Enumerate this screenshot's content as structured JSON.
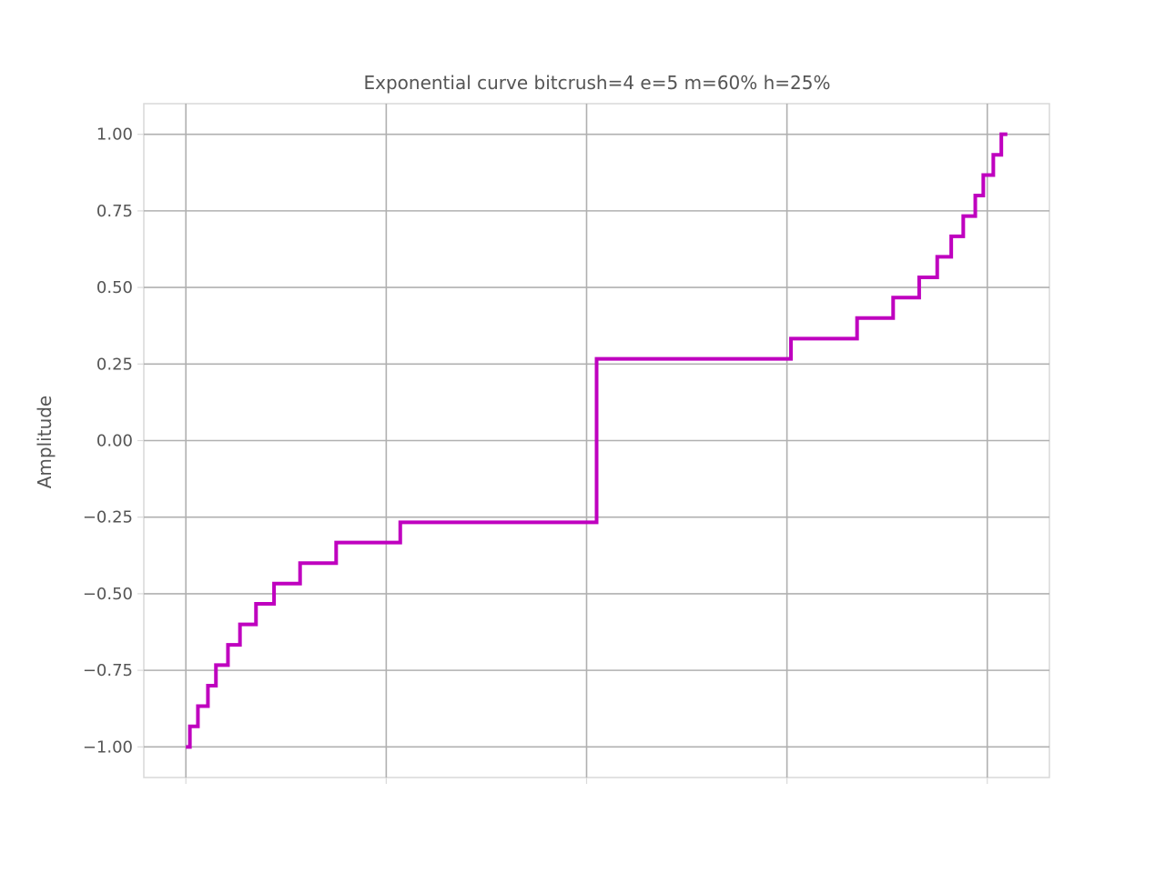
{
  "colors": {
    "series": "#bf00bf",
    "grid": "#b0b0b0",
    "frame": "#d9d9d9",
    "text": "#555555"
  },
  "chart_data": {
    "type": "line",
    "step": true,
    "title": "Exponential curve bitcrush=4 e=5 m=60% h=25%",
    "xlabel": "",
    "ylabel": "Amplitude",
    "xlim": [
      -0.105,
      2.155
    ],
    "ylim": [
      -1.1,
      1.1
    ],
    "x_ticks": [
      0,
      0.5,
      1.0,
      1.5,
      2.0
    ],
    "x_tick_labels": [
      "",
      "",
      "",
      "",
      ""
    ],
    "y_ticks": [
      -1.0,
      -0.75,
      -0.5,
      -0.25,
      0.0,
      0.25,
      0.5,
      0.75,
      1.0
    ],
    "y_tick_labels": [
      "−1.00",
      "−0.75",
      "−0.50",
      "−0.25",
      "0.00",
      "0.25",
      "0.50",
      "0.75",
      "1.00"
    ],
    "grid": true,
    "series": [
      {
        "color": "#bf00bf",
        "x": [
          0.0,
          0.01,
          0.01,
          0.03,
          0.03,
          0.055,
          0.055,
          0.075,
          0.075,
          0.105,
          0.105,
          0.135,
          0.135,
          0.175,
          0.175,
          0.22,
          0.22,
          0.285,
          0.285,
          0.375,
          0.375,
          0.535,
          0.535,
          1.025,
          1.025,
          1.51,
          1.51,
          1.675,
          1.675,
          1.765,
          1.765,
          1.83,
          1.83,
          1.875,
          1.875,
          1.91,
          1.91,
          1.94,
          1.94,
          1.97,
          1.97,
          1.99,
          1.99,
          2.015,
          2.015,
          2.035,
          2.035,
          2.05
        ],
        "y": [
          -1.0,
          -1.0,
          -0.933,
          -0.933,
          -0.867,
          -0.867,
          -0.8,
          -0.8,
          -0.733,
          -0.733,
          -0.667,
          -0.667,
          -0.6,
          -0.6,
          -0.533,
          -0.533,
          -0.467,
          -0.467,
          -0.4,
          -0.4,
          -0.333,
          -0.333,
          -0.267,
          -0.267,
          0.267,
          0.267,
          0.333,
          0.333,
          0.4,
          0.4,
          0.467,
          0.467,
          0.533,
          0.533,
          0.6,
          0.6,
          0.667,
          0.667,
          0.733,
          0.733,
          0.8,
          0.8,
          0.867,
          0.867,
          0.933,
          0.933,
          1.0,
          1.0
        ]
      }
    ]
  }
}
